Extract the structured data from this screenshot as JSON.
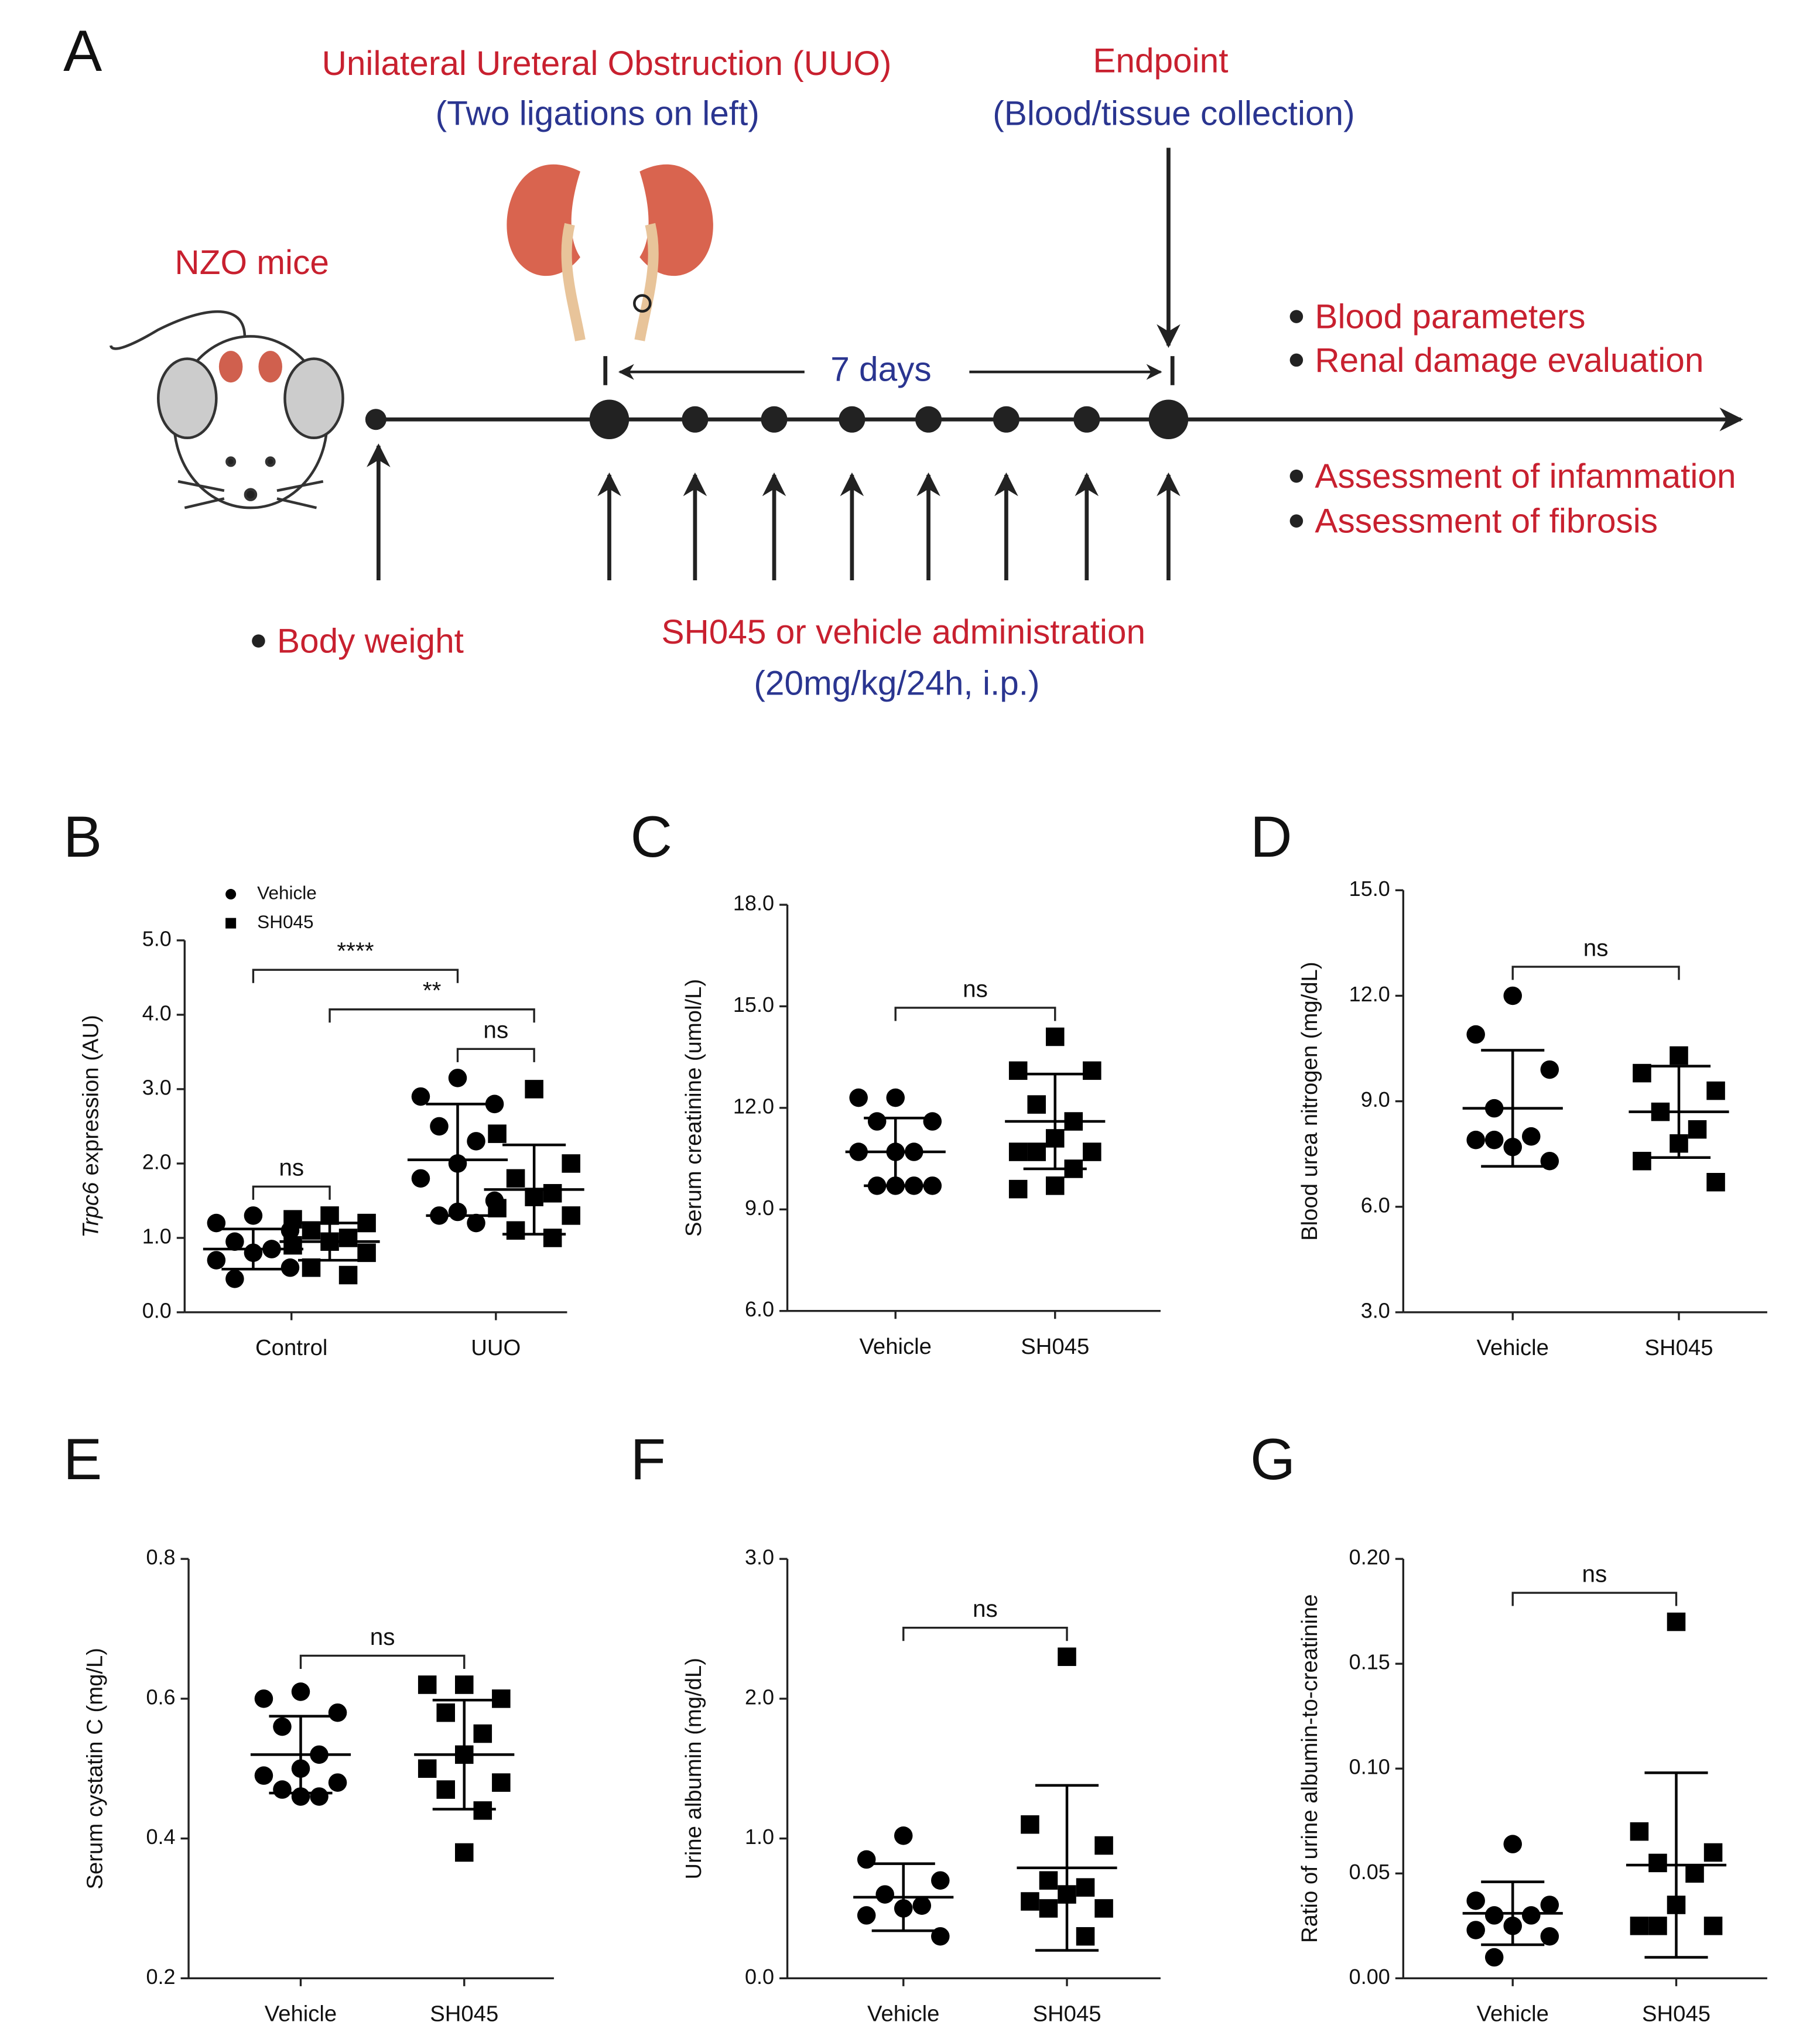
{
  "diagram": {
    "panel": "A",
    "uuo_title": "Unilateral Ureteral Obstruction (UUO)",
    "uuo_note": "(Two ligations on left)",
    "endpoint_title": "Endpoint",
    "endpoint_note": "(Blood/tissue collection)",
    "mice": "NZO mice",
    "duration": "7 days",
    "body_weight": "Body weight",
    "admin_title": "SH045 or vehicle administration",
    "admin_dose": "(20mg/kg/24h, i.p.)",
    "outcomes": [
      "Blood parameters",
      "Renal damage evaluation",
      "Assessment of infammation",
      "Assessment of fibrosis"
    ]
  },
  "chart_data": [
    {
      "type": "dot",
      "panel": "B",
      "ylabel_gene": "Trpc6",
      "ylabel": "expression (AU)",
      "categories": [
        "Control",
        "UUO"
      ],
      "legend": "top-left",
      "ylim": [
        0,
        5
      ],
      "yticks": [
        {
          "value": 0,
          "label": "0.0"
        },
        {
          "value": 1,
          "label": "1.0"
        },
        {
          "value": 2,
          "label": "2.0"
        },
        {
          "value": 3,
          "label": "3.0"
        },
        {
          "value": 4,
          "label": "4.0"
        },
        {
          "value": 5,
          "label": "5.0"
        }
      ],
      "series": [
        {
          "name": "Vehicle",
          "marker": "circle",
          "color": "#000000",
          "groups": [
            {
              "points": [
                1.3,
                1.2,
                1.1,
                0.95,
                0.85,
                0.8,
                0.7,
                0.6,
                0.45,
                0.85
              ],
              "mean": 0.85,
              "sd": 0.27
            },
            {
              "points": [
                3.15,
                2.9,
                2.8,
                2.5,
                2.3,
                2.0,
                1.8,
                1.5,
                1.3,
                1.2,
                1.35
              ],
              "mean": 2.05,
              "sd": 0.75
            }
          ]
        },
        {
          "name": "SH045",
          "marker": "square",
          "color": "#000000",
          "groups": [
            {
              "points": [
                1.3,
                1.25,
                1.2,
                1.1,
                1.0,
                0.95,
                0.9,
                0.8,
                0.6,
                0.5
              ],
              "mean": 0.95,
              "sd": 0.25
            },
            {
              "points": [
                3.0,
                2.4,
                2.0,
                1.8,
                1.6,
                1.55,
                1.4,
                1.3,
                1.1,
                1.0
              ],
              "mean": 1.65,
              "sd": 0.6
            }
          ]
        }
      ],
      "brackets": [
        {
          "groups": [
            0,
            1
          ],
          "label": "ns"
        },
        {
          "groups": [
            2,
            3
          ],
          "label": "ns"
        },
        {
          "groups": [
            1,
            3
          ],
          "label": "**"
        },
        {
          "groups": [
            0,
            2
          ],
          "label": "****"
        }
      ]
    },
    {
      "type": "dot",
      "panel": "C",
      "ylabel": "Serum creatinine (umol/L)",
      "categories": [
        "Vehicle",
        "SH045"
      ],
      "ylim": [
        6,
        18
      ],
      "yticks": [
        {
          "value": 6,
          "label": "6.0"
        },
        {
          "value": 9,
          "label": "9.0"
        },
        {
          "value": 12,
          "label": "12.0"
        },
        {
          "value": 15,
          "label": "15.0"
        },
        {
          "value": 18,
          "label": "18.0"
        }
      ],
      "groups": [
        {
          "marker": "circle",
          "points": [
            12.3,
            12.3,
            11.6,
            11.6,
            10.7,
            10.7,
            10.7,
            9.7,
            9.7,
            9.7,
            9.7
          ],
          "mean": 10.7,
          "sd": 1.0
        },
        {
          "marker": "square",
          "points": [
            14.1,
            13.1,
            13.1,
            12.1,
            11.6,
            11.1,
            10.7,
            10.7,
            10.7,
            10.2,
            9.7,
            9.6
          ],
          "mean": 11.6,
          "sd": 1.4
        }
      ],
      "brackets": [
        {
          "groups": [
            0,
            1
          ],
          "label": "ns"
        }
      ]
    },
    {
      "type": "dot",
      "panel": "D",
      "ylabel": "Blood urea nitrogen (mg/dL)",
      "categories": [
        "Vehicle",
        "SH045"
      ],
      "ylim": [
        3,
        15
      ],
      "yticks": [
        {
          "value": 3,
          "label": "3.0"
        },
        {
          "value": 6,
          "label": "6.0"
        },
        {
          "value": 9,
          "label": "9.0"
        },
        {
          "value": 12,
          "label": "12.0"
        },
        {
          "value": 15,
          "label": "15.0"
        }
      ],
      "groups": [
        {
          "marker": "circle",
          "points": [
            12.0,
            10.9,
            9.9,
            8.8,
            8.0,
            7.7,
            7.9,
            7.3,
            7.9
          ],
          "mean": 8.8,
          "sd": 1.65
        },
        {
          "marker": "square",
          "points": [
            10.3,
            9.8,
            9.3,
            8.7,
            8.2,
            7.8,
            7.3,
            6.7
          ],
          "mean": 8.7,
          "sd": 1.3
        }
      ],
      "brackets": [
        {
          "groups": [
            0,
            1
          ],
          "label": "ns"
        }
      ]
    },
    {
      "type": "dot",
      "panel": "E",
      "ylabel": "Serum cystatin C (mg/L)",
      "categories": [
        "Vehicle",
        "SH045"
      ],
      "ylim": [
        0.2,
        0.8
      ],
      "yticks": [
        0.2,
        0.4,
        0.6,
        0.8
      ],
      "groups": [
        {
          "marker": "circle",
          "points": [
            0.61,
            0.6,
            0.58,
            0.56,
            0.52,
            0.5,
            0.49,
            0.48,
            0.47,
            0.46,
            0.46
          ],
          "mean": 0.52,
          "sd": 0.055
        },
        {
          "marker": "square",
          "points": [
            0.62,
            0.62,
            0.6,
            0.58,
            0.55,
            0.52,
            0.5,
            0.48,
            0.47,
            0.44,
            0.38
          ],
          "mean": 0.52,
          "sd": 0.078
        }
      ],
      "brackets": [
        {
          "groups": [
            0,
            1
          ],
          "label": "ns"
        }
      ]
    },
    {
      "type": "dot",
      "panel": "F",
      "ylabel": "Urine albumin (mg/dL)",
      "categories": [
        "Vehicle",
        "SH045"
      ],
      "ylim": [
        0,
        3
      ],
      "yticks": [
        {
          "value": 0,
          "label": "0.0"
        },
        {
          "value": 1,
          "label": "1.0"
        },
        {
          "value": 2,
          "label": "2.0"
        },
        {
          "value": 3,
          "label": "3.0"
        }
      ],
      "groups": [
        {
          "marker": "circle",
          "points": [
            1.02,
            0.85,
            0.7,
            0.6,
            0.52,
            0.5,
            0.45,
            0.3
          ],
          "mean": 0.58,
          "sd": 0.24
        },
        {
          "marker": "square",
          "points": [
            2.3,
            1.1,
            0.95,
            0.7,
            0.65,
            0.6,
            0.55,
            0.5,
            0.5,
            0.3
          ],
          "mean": 0.79,
          "sd": 0.59
        }
      ],
      "brackets": [
        {
          "groups": [
            0,
            1
          ],
          "label": "ns"
        }
      ]
    },
    {
      "type": "dot",
      "panel": "G",
      "ylabel": "Ratio of urine albumin-to-creatinine",
      "categories": [
        "Vehicle",
        "SH045"
      ],
      "ylim": [
        0,
        0.2
      ],
      "yticks": [
        {
          "value": 0,
          "label": "0.00"
        },
        0.05,
        {
          "value": 0.1,
          "label": "0.10"
        },
        0.15,
        {
          "value": 0.2,
          "label": "0.20"
        }
      ],
      "groups": [
        {
          "marker": "circle",
          "points": [
            0.064,
            0.037,
            0.035,
            0.03,
            0.03,
            0.025,
            0.023,
            0.02,
            0.01
          ],
          "mean": 0.031,
          "sd": 0.015
        },
        {
          "marker": "square",
          "points": [
            0.17,
            0.07,
            0.06,
            0.055,
            0.05,
            0.035,
            0.025,
            0.025,
            0.025
          ],
          "mean": 0.054,
          "sd": 0.044
        }
      ],
      "brackets": [
        {
          "groups": [
            0,
            1
          ],
          "label": "ns"
        }
      ]
    }
  ]
}
